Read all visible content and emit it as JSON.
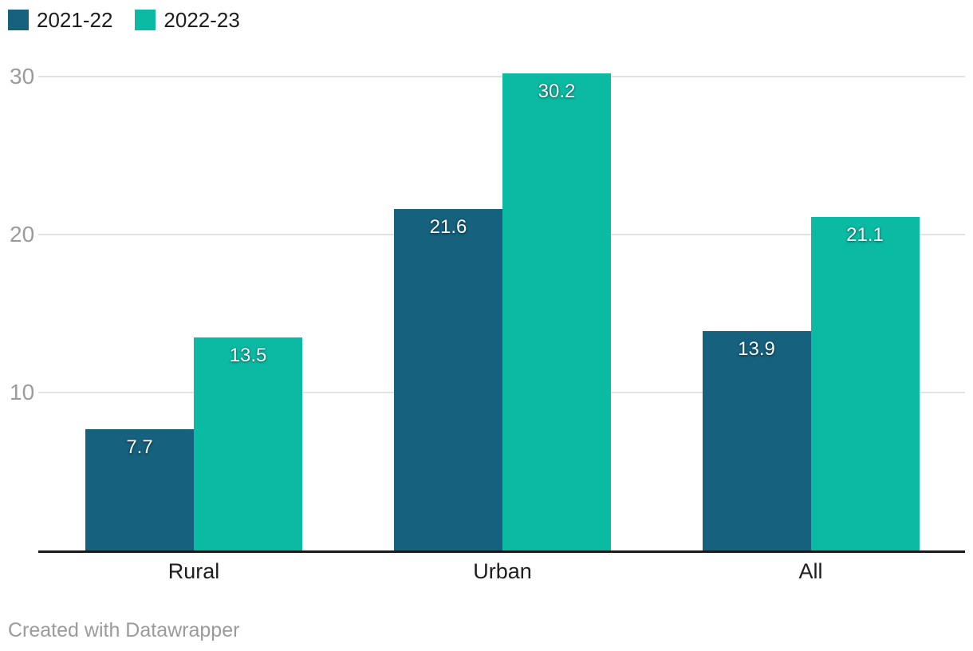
{
  "chart_data": {
    "type": "bar",
    "categories": [
      "Rural",
      "Urban",
      "All"
    ],
    "series": [
      {
        "name": "2021-22",
        "color": "#15617e",
        "values": [
          7.7,
          21.6,
          13.9
        ]
      },
      {
        "name": "2022-23",
        "color": "#0bbaa3",
        "values": [
          13.5,
          30.2,
          21.1
        ]
      }
    ],
    "title": "",
    "xlabel": "",
    "ylabel": "",
    "ylim": [
      0,
      30.9
    ],
    "yticks": [
      10,
      20,
      30
    ],
    "grid": true,
    "legend_position": "top-left",
    "value_labels": true
  },
  "colors": {
    "series_1": "#15617e",
    "series_2": "#0bbaa3",
    "gridline": "#e3e3e3",
    "axis_baseline": "#1a1a1a",
    "tick_text": "#9b9b9b",
    "label_text": "#1d1d1d",
    "value_label_text": "#ffffff"
  },
  "footer": {
    "credit": "Created with Datawrapper"
  }
}
